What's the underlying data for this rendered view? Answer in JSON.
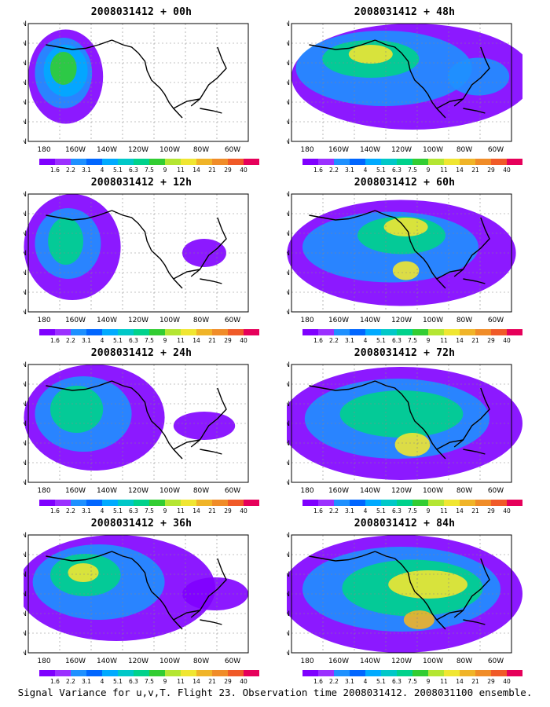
{
  "panels": [
    {
      "title": "2008031412 + 00h"
    },
    {
      "title": "2008031412 + 48h"
    },
    {
      "title": "2008031412 + 12h"
    },
    {
      "title": "2008031412 + 60h"
    },
    {
      "title": "2008031412 + 24h"
    },
    {
      "title": "2008031412 + 72h"
    },
    {
      "title": "2008031412 + 36h"
    },
    {
      "title": "2008031412 + 84h"
    }
  ],
  "axes": {
    "lat_labels": [
      "70N",
      "60N",
      "50N",
      "40N",
      "30N",
      "20N",
      "10N"
    ],
    "lon_labels": [
      "180",
      "160W",
      "140W",
      "120W",
      "100W",
      "80W",
      "60W"
    ]
  },
  "colorbar": {
    "labels": [
      "1.6",
      "2.2",
      "3.1",
      "4",
      "5.1",
      "6.3",
      "7.5",
      "9",
      "11",
      "14",
      "21",
      "29",
      "40"
    ],
    "colors": [
      "#7f00ff",
      "#9b30ff",
      "#1e90ff",
      "#0066ff",
      "#00aaff",
      "#00c8c8",
      "#00d28c",
      "#32cd32",
      "#b4e632",
      "#f0e632",
      "#f0b428",
      "#f08c28",
      "#f05a28",
      "#e6005a"
    ]
  },
  "footer": "Signal Variance for u,v,T. Flight 23. Observation time 2008031412. 2008031100 ensemble."
}
